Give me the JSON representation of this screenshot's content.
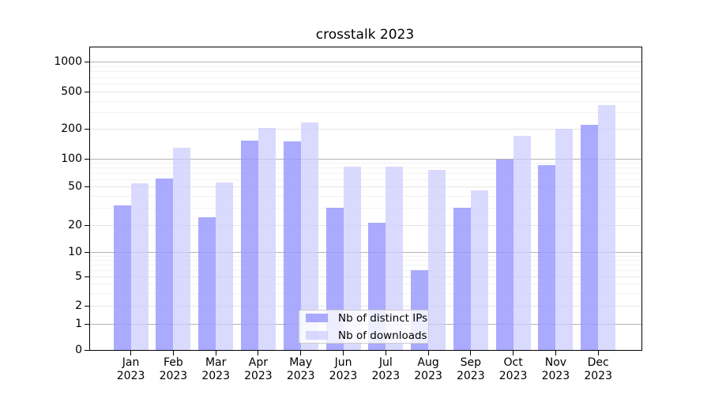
{
  "chart_data": {
    "type": "bar",
    "title": "crosstalk 2023",
    "x_categories": [
      "Jan",
      "Feb",
      "Mar",
      "Apr",
      "May",
      "Jun",
      "Jul",
      "Aug",
      "Sep",
      "Oct",
      "Nov",
      "Dec"
    ],
    "x_year": "2023",
    "y_ticks": [
      0,
      1,
      2,
      5,
      10,
      20,
      50,
      100,
      200,
      500,
      1000
    ],
    "y_scale": "log-like with 0 baseline (ticks 0,1,2,5,10,20,50,100,200,500,1000)",
    "ylim": [
      0,
      1000
    ],
    "grid": "on, horizontal major and minor gridlines",
    "legend_position": "lower center",
    "series": [
      {
        "name": "Nb of distinct IPs",
        "color": "#9999ff",
        "values": [
          32,
          61,
          24,
          152,
          149,
          30,
          21,
          6,
          30,
          97,
          85,
          222
        ]
      },
      {
        "name": "Nb of downloads",
        "color": "#ccccff",
        "values": [
          54,
          130,
          55,
          206,
          234,
          81,
          81,
          76,
          46,
          171,
          200,
          362
        ]
      }
    ]
  }
}
